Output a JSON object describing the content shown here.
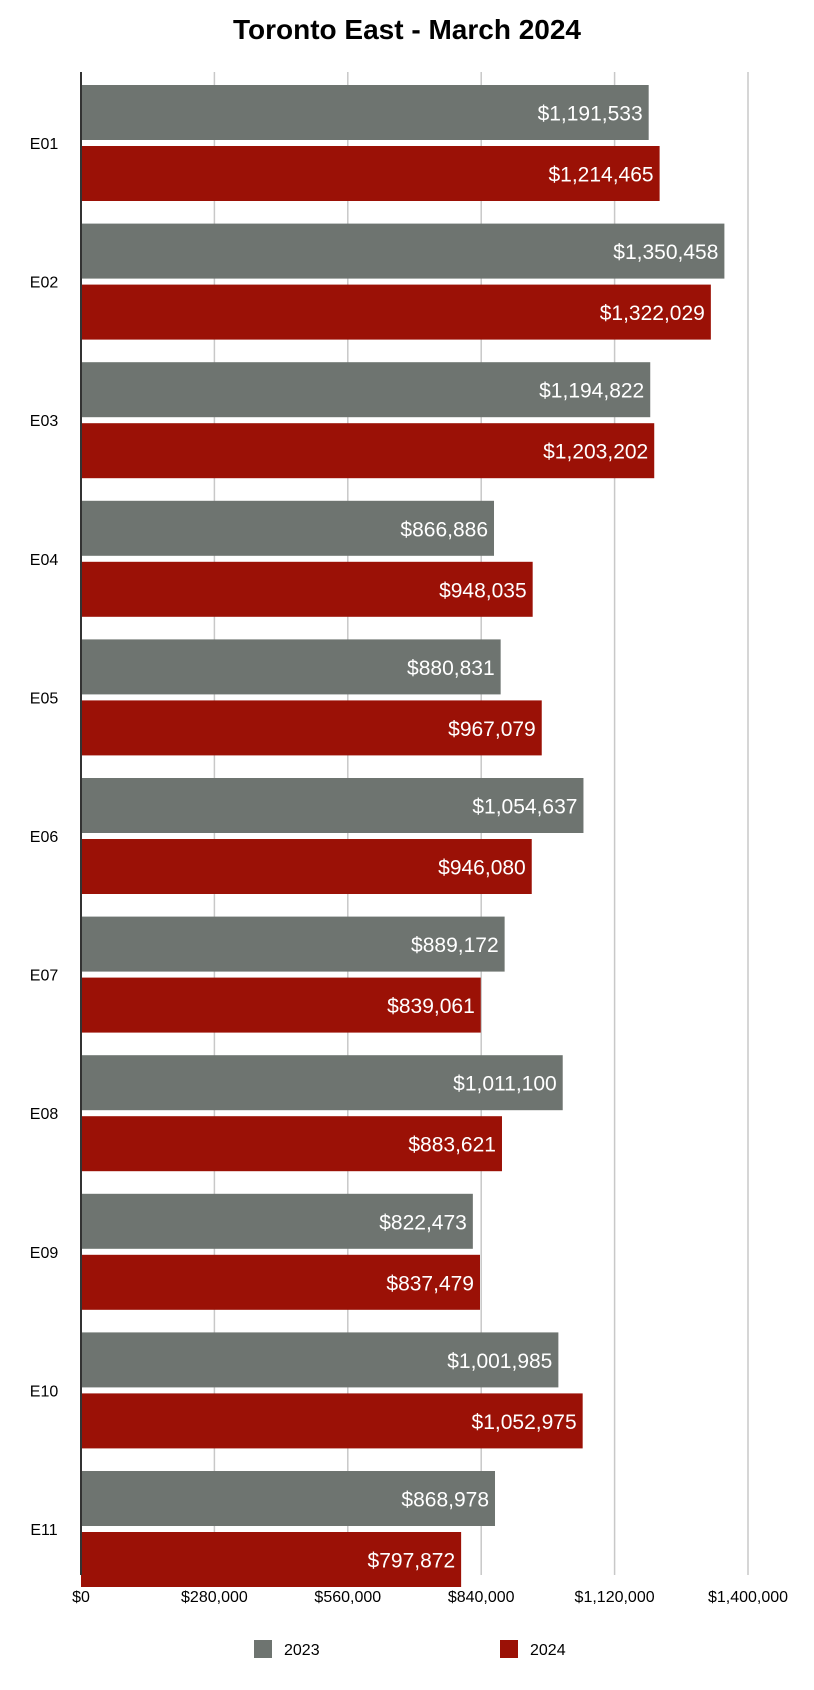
{
  "chart_data": {
    "type": "bar",
    "orientation": "horizontal",
    "title": "Toronto East - March 2024",
    "xlabel": "",
    "ylabel": "",
    "categories": [
      "E01",
      "E02",
      "E03",
      "E04",
      "E05",
      "E06",
      "E07",
      "E08",
      "E09",
      "E10",
      "E11"
    ],
    "series": [
      {
        "name": "2023",
        "color": "#6e7470",
        "values": [
          1191533,
          1350458,
          1194822,
          866886,
          880831,
          1054637,
          889172,
          1011100,
          822473,
          1001985,
          868978
        ],
        "labels": [
          "$1,191,533",
          "$1,350,458",
          "$1,194,822",
          "$866,886",
          "$880,831",
          "$1,054,637",
          "$889,172",
          "$1,011,100",
          "$822,473",
          "$1,001,985",
          "$868,978"
        ]
      },
      {
        "name": "2024",
        "color": "#9b1106",
        "values": [
          1214465,
          1322029,
          1203202,
          948035,
          967079,
          946080,
          839061,
          883621,
          837479,
          1052975,
          797872
        ],
        "labels": [
          "$1,214,465",
          "$1,322,029",
          "$1,203,202",
          "$948,035",
          "$967,079",
          "$946,080",
          "$839,061",
          "$883,621",
          "$837,479",
          "$1,052,975",
          "$797,872"
        ]
      }
    ],
    "xlim": [
      0,
      1400000
    ],
    "ticks": [
      0,
      280000,
      560000,
      840000,
      1120000,
      1400000
    ],
    "tick_labels": [
      "$0",
      "$280,000",
      "$560,000",
      "$840,000",
      "$1,120,000",
      "$1,400,000"
    ],
    "grid": true,
    "legend_position": "bottom",
    "data_labels": "inside-end",
    "gridline_color": "#c8c8c8",
    "axis_color": "#333333",
    "label_color": "#ffffff"
  }
}
